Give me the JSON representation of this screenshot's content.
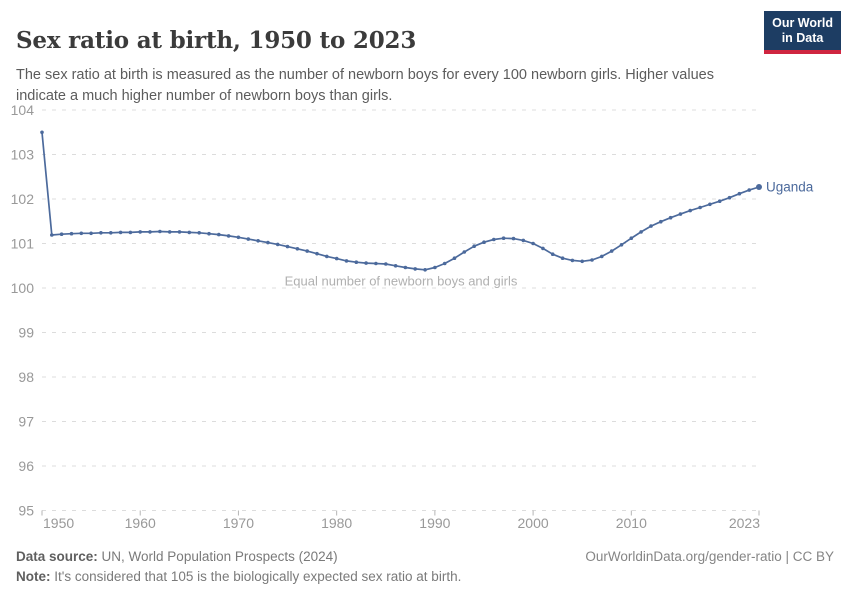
{
  "header": {
    "title": "Sex ratio at birth, 1950 to 2023",
    "subtitle": "The sex ratio at birth is measured as the number of newborn boys for every 100 newborn girls. Higher values indicate a much higher number of newborn boys than girls.",
    "logo_line1": "Our World",
    "logo_line2": "in Data",
    "logo_bg": "#1d3d63",
    "logo_accent": "#cf2540"
  },
  "footer": {
    "data_source_label": "Data source:",
    "data_source_text": "UN, World Population Prospects (2024)",
    "note_label": "Note:",
    "note_text": "It's considered that 105 is the biologically expected sex ratio at birth.",
    "attribution": "OurWorldinData.org/gender-ratio | CC BY"
  },
  "chart_data": {
    "type": "line",
    "title": "Sex ratio at birth, 1950 to 2023",
    "xlabel": "",
    "ylabel": "",
    "xlim": [
      1950,
      2023
    ],
    "ylim": [
      95,
      104
    ],
    "grid": "dashed-horizontal",
    "legend_position": "end-of-line",
    "annotation": "Equal number of newborn boys and girls",
    "annotation_y": 100,
    "yticks": [
      95,
      96,
      97,
      98,
      99,
      100,
      101,
      102,
      103,
      104
    ],
    "xticks": [
      1950,
      1960,
      1970,
      1980,
      1990,
      2000,
      2010,
      2023
    ],
    "colors": {
      "line": "#4c6a9c",
      "grid": "#dcdcdc",
      "tick_label": "#999999",
      "tick_mark": "#b5b5b5",
      "annotation": "#b0b0b0"
    },
    "series": [
      {
        "name": "Uganda",
        "x": [
          1950,
          1951,
          1952,
          1953,
          1954,
          1955,
          1956,
          1957,
          1958,
          1959,
          1960,
          1961,
          1962,
          1963,
          1964,
          1965,
          1966,
          1967,
          1968,
          1969,
          1970,
          1971,
          1972,
          1973,
          1974,
          1975,
          1976,
          1977,
          1978,
          1979,
          1980,
          1981,
          1982,
          1983,
          1984,
          1985,
          1986,
          1987,
          1988,
          1989,
          1990,
          1991,
          1992,
          1993,
          1994,
          1995,
          1996,
          1997,
          1998,
          1999,
          2000,
          2001,
          2002,
          2003,
          2004,
          2005,
          2006,
          2007,
          2008,
          2009,
          2010,
          2011,
          2012,
          2013,
          2014,
          2015,
          2016,
          2017,
          2018,
          2019,
          2020,
          2021,
          2022,
          2023
        ],
        "values": [
          103.5,
          101.19,
          101.21,
          101.22,
          101.23,
          101.23,
          101.24,
          101.24,
          101.25,
          101.25,
          101.26,
          101.26,
          101.27,
          101.26,
          101.26,
          101.25,
          101.24,
          101.22,
          101.2,
          101.17,
          101.14,
          101.1,
          101.06,
          101.02,
          100.98,
          100.93,
          100.88,
          100.83,
          100.77,
          100.71,
          100.66,
          100.61,
          100.58,
          100.56,
          100.55,
          100.54,
          100.5,
          100.46,
          100.43,
          100.41,
          100.46,
          100.55,
          100.67,
          100.81,
          100.94,
          101.03,
          101.09,
          101.12,
          101.11,
          101.07,
          101.0,
          100.89,
          100.76,
          100.67,
          100.62,
          100.6,
          100.63,
          100.71,
          100.83,
          100.97,
          101.12,
          101.26,
          101.39,
          101.49,
          101.58,
          101.66,
          101.74,
          101.81,
          101.88,
          101.95,
          102.03,
          102.12,
          102.2,
          102.27
        ]
      }
    ]
  }
}
